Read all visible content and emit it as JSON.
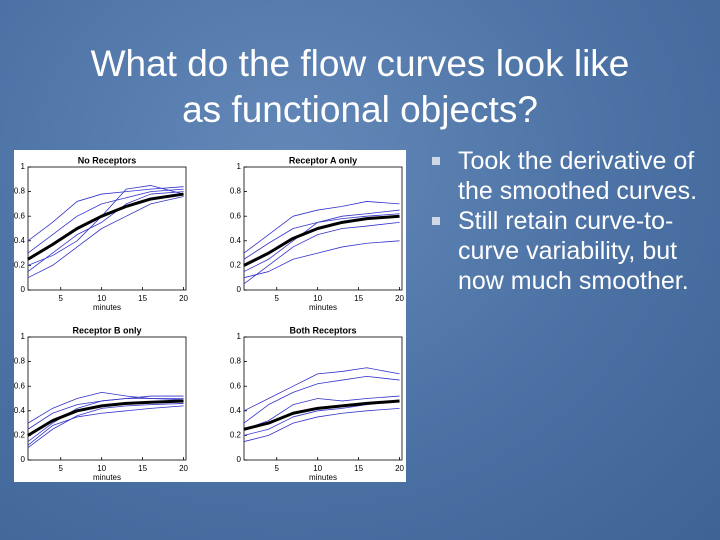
{
  "slide": {
    "title_lines": [
      "What do the flow curves look like",
      "as functional objects?"
    ],
    "bullets": [
      "Took the derivative of the smoothed curves.",
      "Still retain curve-to-curve variability, but now much smoother."
    ]
  },
  "chart_data": [
    {
      "type": "line",
      "title": "No Receptors",
      "xlabel": "minutes",
      "x": [
        1,
        4,
        7,
        10,
        13,
        16,
        20
      ],
      "xlim": [
        1,
        20.3
      ],
      "ylim": [
        0,
        1
      ],
      "xticks": [
        5,
        10,
        15,
        20
      ],
      "yticks": [
        0,
        0.2,
        0.4,
        0.6,
        0.8,
        1
      ],
      "series": [
        {
          "color": "#000000",
          "values": [
            0.25,
            0.37,
            0.5,
            0.6,
            0.68,
            0.74,
            0.78
          ]
        },
        {
          "color": "#3333cc",
          "values": [
            0.15,
            0.3,
            0.45,
            0.55,
            0.7,
            0.78,
            0.8
          ]
        },
        {
          "color": "#3333cc",
          "values": [
            0.3,
            0.45,
            0.6,
            0.7,
            0.75,
            0.8,
            0.82
          ]
        },
        {
          "color": "#3333cc",
          "values": [
            0.1,
            0.2,
            0.35,
            0.5,
            0.6,
            0.7,
            0.76
          ]
        },
        {
          "color": "#3333cc",
          "values": [
            0.4,
            0.55,
            0.72,
            0.78,
            0.8,
            0.82,
            0.84
          ]
        },
        {
          "color": "#3333cc",
          "values": [
            0.2,
            0.28,
            0.4,
            0.6,
            0.82,
            0.85,
            0.78
          ]
        }
      ]
    },
    {
      "type": "line",
      "title": "Receptor A only",
      "xlabel": "minutes",
      "x": [
        1,
        4,
        7,
        10,
        13,
        16,
        20
      ],
      "xlim": [
        1,
        20.3
      ],
      "ylim": [
        0,
        1
      ],
      "xticks": [
        5,
        10,
        15,
        20
      ],
      "yticks": [
        0,
        0.2,
        0.4,
        0.6,
        0.8,
        1
      ],
      "series": [
        {
          "color": "#000000",
          "values": [
            0.2,
            0.3,
            0.42,
            0.5,
            0.55,
            0.58,
            0.6
          ]
        },
        {
          "color": "#3333cc",
          "values": [
            0.15,
            0.25,
            0.4,
            0.55,
            0.6,
            0.62,
            0.65
          ]
        },
        {
          "color": "#3333cc",
          "values": [
            0.3,
            0.45,
            0.6,
            0.65,
            0.68,
            0.72,
            0.7
          ]
        },
        {
          "color": "#3333cc",
          "values": [
            0.1,
            0.15,
            0.25,
            0.3,
            0.35,
            0.38,
            0.4
          ]
        },
        {
          "color": "#3333cc",
          "values": [
            0.25,
            0.38,
            0.5,
            0.55,
            0.58,
            0.6,
            0.62
          ]
        },
        {
          "color": "#3333cc",
          "values": [
            0.05,
            0.2,
            0.35,
            0.45,
            0.5,
            0.52,
            0.55
          ]
        }
      ]
    },
    {
      "type": "line",
      "title": "Receptor B only",
      "xlabel": "minutes",
      "x": [
        1,
        4,
        7,
        10,
        13,
        16,
        20
      ],
      "xlim": [
        1,
        20.3
      ],
      "ylim": [
        0,
        1
      ],
      "xticks": [
        5,
        10,
        15,
        20
      ],
      "yticks": [
        0,
        0.2,
        0.4,
        0.6,
        0.8,
        1
      ],
      "series": [
        {
          "color": "#000000",
          "values": [
            0.2,
            0.32,
            0.4,
            0.44,
            0.46,
            0.47,
            0.48
          ]
        },
        {
          "color": "#3333cc",
          "values": [
            0.15,
            0.3,
            0.42,
            0.48,
            0.5,
            0.5,
            0.5
          ]
        },
        {
          "color": "#3333cc",
          "values": [
            0.25,
            0.38,
            0.45,
            0.48,
            0.5,
            0.52,
            0.52
          ]
        },
        {
          "color": "#3333cc",
          "values": [
            0.1,
            0.25,
            0.36,
            0.42,
            0.44,
            0.45,
            0.46
          ]
        },
        {
          "color": "#3333cc",
          "values": [
            0.3,
            0.42,
            0.5,
            0.55,
            0.52,
            0.5,
            0.49
          ]
        },
        {
          "color": "#3333cc",
          "values": [
            0.12,
            0.28,
            0.35,
            0.38,
            0.4,
            0.42,
            0.44
          ]
        }
      ]
    },
    {
      "type": "line",
      "title": "Both Receptors",
      "xlabel": "minutes",
      "x": [
        1,
        4,
        7,
        10,
        13,
        16,
        20
      ],
      "xlim": [
        1,
        20.3
      ],
      "ylim": [
        0,
        1
      ],
      "xticks": [
        5,
        10,
        15,
        20
      ],
      "yticks": [
        0,
        0.2,
        0.4,
        0.6,
        0.8,
        1
      ],
      "series": [
        {
          "color": "#000000",
          "values": [
            0.25,
            0.3,
            0.38,
            0.42,
            0.44,
            0.46,
            0.48
          ]
        },
        {
          "color": "#3333cc",
          "values": [
            0.3,
            0.45,
            0.55,
            0.62,
            0.65,
            0.68,
            0.65
          ]
        },
        {
          "color": "#3333cc",
          "values": [
            0.2,
            0.25,
            0.35,
            0.4,
            0.42,
            0.45,
            0.48
          ]
        },
        {
          "color": "#3333cc",
          "values": [
            0.15,
            0.2,
            0.3,
            0.35,
            0.38,
            0.4,
            0.42
          ]
        },
        {
          "color": "#3333cc",
          "values": [
            0.4,
            0.5,
            0.6,
            0.7,
            0.72,
            0.75,
            0.7
          ]
        },
        {
          "color": "#3333cc",
          "values": [
            0.25,
            0.32,
            0.45,
            0.5,
            0.48,
            0.5,
            0.52
          ]
        }
      ]
    }
  ]
}
